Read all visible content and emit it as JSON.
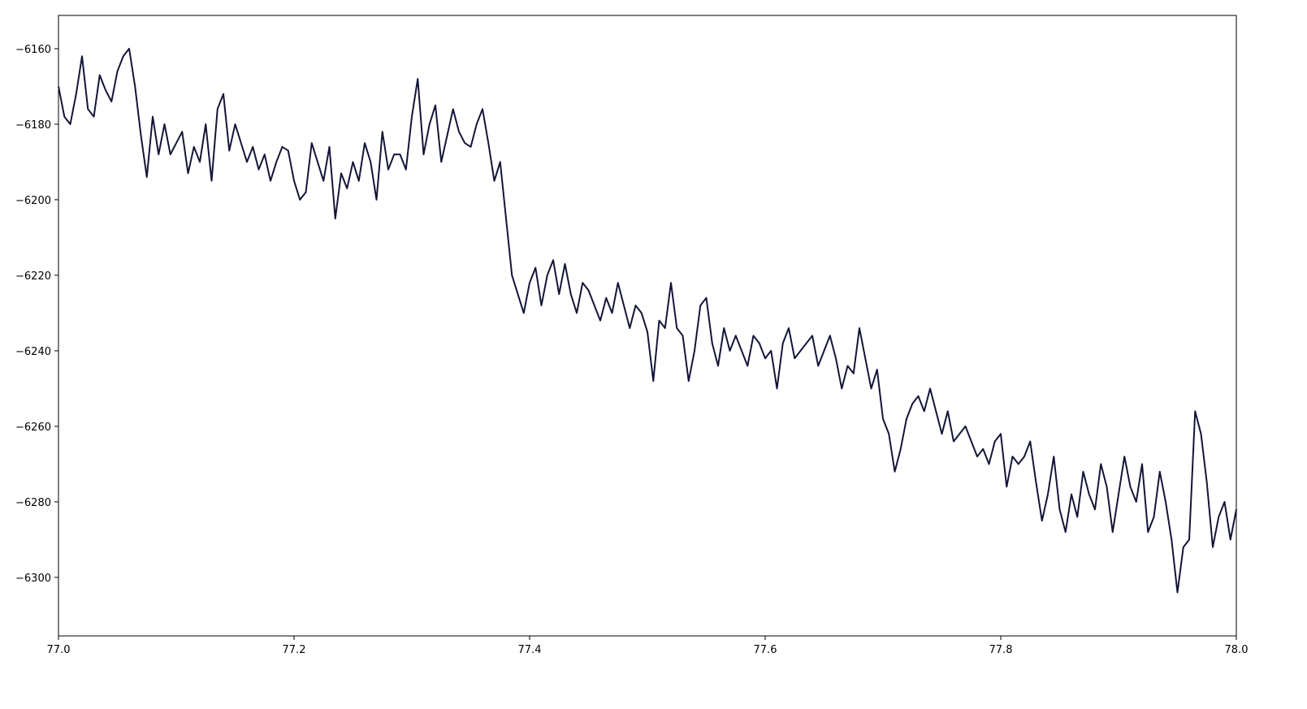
{
  "chart_data": {
    "type": "line",
    "x": [
      77.0,
      77.005,
      77.01,
      77.015,
      77.02,
      77.025,
      77.03,
      77.035,
      77.04,
      77.045,
      77.05,
      77.055,
      77.06,
      77.065,
      77.07,
      77.075,
      77.08,
      77.085,
      77.09,
      77.095,
      77.1,
      77.105,
      77.11,
      77.115,
      77.12,
      77.125,
      77.13,
      77.135,
      77.14,
      77.145,
      77.15,
      77.155,
      77.16,
      77.165,
      77.17,
      77.175,
      77.18,
      77.185,
      77.19,
      77.195,
      77.2,
      77.205,
      77.21,
      77.215,
      77.22,
      77.225,
      77.23,
      77.235,
      77.24,
      77.245,
      77.25,
      77.255,
      77.26,
      77.265,
      77.27,
      77.275,
      77.28,
      77.285,
      77.29,
      77.295,
      77.3,
      77.305,
      77.31,
      77.315,
      77.32,
      77.325,
      77.33,
      77.335,
      77.34,
      77.345,
      77.35,
      77.355,
      77.36,
      77.365,
      77.37,
      77.375,
      77.38,
      77.385,
      77.39,
      77.395,
      77.4,
      77.405,
      77.41,
      77.415,
      77.42,
      77.425,
      77.43,
      77.435,
      77.44,
      77.445,
      77.45,
      77.455,
      77.46,
      77.465,
      77.47,
      77.475,
      77.48,
      77.485,
      77.49,
      77.495,
      77.5,
      77.505,
      77.51,
      77.515,
      77.52,
      77.525,
      77.53,
      77.535,
      77.54,
      77.545,
      77.55,
      77.555,
      77.56,
      77.565,
      77.57,
      77.575,
      77.58,
      77.585,
      77.59,
      77.595,
      77.6,
      77.605,
      77.61,
      77.615,
      77.62,
      77.625,
      77.63,
      77.635,
      77.64,
      77.645,
      77.65,
      77.655,
      77.66,
      77.665,
      77.67,
      77.675,
      77.68,
      77.685,
      77.69,
      77.695,
      77.7,
      77.705,
      77.71,
      77.715,
      77.72,
      77.725,
      77.73,
      77.735,
      77.74,
      77.745,
      77.75,
      77.755,
      77.76,
      77.765,
      77.77,
      77.775,
      77.78,
      77.785,
      77.79,
      77.795,
      77.8,
      77.805,
      77.81,
      77.815,
      77.82,
      77.825,
      77.83,
      77.835,
      77.84,
      77.845,
      77.85,
      77.855,
      77.86,
      77.865,
      77.87,
      77.875,
      77.88,
      77.885,
      77.89,
      77.895,
      77.9,
      77.905,
      77.91,
      77.915,
      77.92,
      77.925,
      77.93,
      77.935,
      77.94,
      77.945,
      77.95,
      77.955,
      77.96,
      77.965,
      77.97,
      77.975,
      77.98,
      77.985,
      77.99,
      77.995,
      78.0
    ],
    "series": [
      {
        "color": "#141438",
        "values": [
          -6170,
          -6178,
          -6180,
          -6172,
          -6162,
          -6176,
          -6178,
          -6167,
          -6171,
          -6174,
          -6166,
          -6162,
          -6160,
          -6170,
          -6183,
          -6194,
          -6178,
          -6188,
          -6180,
          -6188,
          -6185,
          -6182,
          -6193,
          -6186,
          -6190,
          -6180,
          -6195,
          -6176,
          -6172,
          -6187,
          -6180,
          -6185,
          -6190,
          -6186,
          -6192,
          -6188,
          -6195,
          -6190,
          -6186,
          -6187,
          -6195,
          -6200,
          -6198,
          -6185,
          -6190,
          -6195,
          -6186,
          -6205,
          -6193,
          -6197,
          -6190,
          -6195,
          -6185,
          -6190,
          -6200,
          -6182,
          -6192,
          -6188,
          -6188,
          -6192,
          -6178,
          -6168,
          -6188,
          -6180,
          -6175,
          -6190,
          -6183,
          -6176,
          -6182,
          -6185,
          -6186,
          -6180,
          -6176,
          -6185,
          -6195,
          -6190,
          -6205,
          -6220,
          -6225,
          -6230,
          -6222,
          -6218,
          -6228,
          -6220,
          -6216,
          -6225,
          -6217,
          -6225,
          -6230,
          -6222,
          -6224,
          -6228,
          -6232,
          -6226,
          -6230,
          -6222,
          -6228,
          -6234,
          -6228,
          -6230,
          -6235,
          -6248,
          -6232,
          -6234,
          -6222,
          -6234,
          -6236,
          -6248,
          -6240,
          -6228,
          -6226,
          -6238,
          -6244,
          -6234,
          -6240,
          -6236,
          -6240,
          -6244,
          -6236,
          -6238,
          -6242,
          -6240,
          -6250,
          -6238,
          -6234,
          -6242,
          -6240,
          -6238,
          -6236,
          -6244,
          -6240,
          -6236,
          -6242,
          -6250,
          -6244,
          -6246,
          -6234,
          -6242,
          -6250,
          -6245,
          -6258,
          -6262,
          -6272,
          -6266,
          -6258,
          -6254,
          -6252,
          -6256,
          -6250,
          -6256,
          -6262,
          -6256,
          -6264,
          -6262,
          -6260,
          -6264,
          -6268,
          -6266,
          -6270,
          -6264,
          -6262,
          -6276,
          -6268,
          -6270,
          -6268,
          -6264,
          -6275,
          -6285,
          -6278,
          -6268,
          -6282,
          -6288,
          -6278,
          -6284,
          -6272,
          -6278,
          -6282,
          -6270,
          -6276,
          -6288,
          -6278,
          -6268,
          -6276,
          -6280,
          -6270,
          -6288,
          -6284,
          -6272,
          -6280,
          -6290,
          -6304,
          -6292,
          -6290,
          -6256,
          -6262,
          -6275,
          -6292,
          -6284,
          -6280,
          -6290,
          -6282
        ]
      }
    ],
    "xlim": [
      77.0,
      78.0
    ],
    "ylim": [
      -6315.5,
      -6151.2
    ],
    "xticks": [
      {
        "value": 77.0,
        "label": "77.0"
      },
      {
        "value": 77.2,
        "label": "77.2"
      },
      {
        "value": 77.4,
        "label": "77.4"
      },
      {
        "value": 77.6,
        "label": "77.6"
      },
      {
        "value": 77.8,
        "label": "77.8"
      },
      {
        "value": 78.0,
        "label": "78.0"
      }
    ],
    "yticks": [
      {
        "value": -6160,
        "label": "−6160"
      },
      {
        "value": -6180,
        "label": "−6180"
      },
      {
        "value": -6200,
        "label": "−6200"
      },
      {
        "value": -6220,
        "label": "−6220"
      },
      {
        "value": -6240,
        "label": "−6240"
      },
      {
        "value": -6260,
        "label": "−6260"
      },
      {
        "value": -6280,
        "label": "−6280"
      },
      {
        "value": -6300,
        "label": "−6300"
      }
    ],
    "grid": false
  }
}
